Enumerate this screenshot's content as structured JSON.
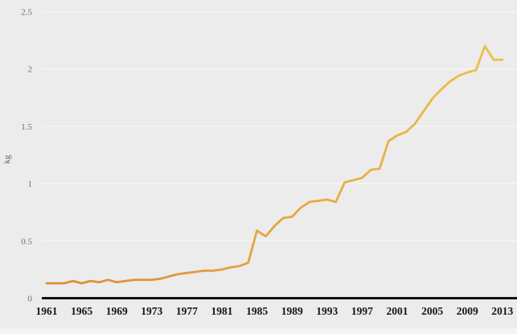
{
  "chart_data": {
    "type": "line",
    "title": "",
    "xlabel": "",
    "ylabel": "kg",
    "xlim": [
      1961,
      2013
    ],
    "ylim": [
      0,
      2.5
    ],
    "grid": true,
    "legend": "none",
    "x_tick_labels": [
      "1961",
      "1965",
      "1969",
      "1973",
      "1977",
      "1981",
      "1985",
      "1989",
      "1993",
      "1997",
      "2001",
      "2005",
      "2009",
      "2013"
    ],
    "x_ticks": [
      1961,
      1965,
      1969,
      1973,
      1977,
      1981,
      1985,
      1989,
      1993,
      1997,
      2001,
      2005,
      2009,
      2013
    ],
    "y_tick_labels": [
      "0",
      "0.5",
      "1",
      "1.5",
      "2",
      "2.5"
    ],
    "y_ticks": [
      0,
      0.5,
      1,
      1.5,
      2,
      2.5
    ],
    "series": [
      {
        "name": "kg",
        "x": [
          1961,
          1962,
          1963,
          1964,
          1965,
          1966,
          1967,
          1968,
          1969,
          1970,
          1971,
          1972,
          1973,
          1974,
          1975,
          1976,
          1977,
          1978,
          1979,
          1980,
          1981,
          1982,
          1983,
          1984,
          1985,
          1986,
          1987,
          1988,
          1989,
          1990,
          1991,
          1992,
          1993,
          1994,
          1995,
          1996,
          1997,
          1998,
          1999,
          2000,
          2001,
          2002,
          2003,
          2004,
          2005,
          2006,
          2007,
          2008,
          2009,
          2010,
          2011,
          2012,
          2013
        ],
        "values": [
          0.13,
          0.13,
          0.13,
          0.15,
          0.13,
          0.15,
          0.14,
          0.16,
          0.14,
          0.15,
          0.16,
          0.16,
          0.16,
          0.17,
          0.19,
          0.21,
          0.22,
          0.23,
          0.24,
          0.24,
          0.25,
          0.27,
          0.28,
          0.31,
          0.59,
          0.54,
          0.63,
          0.7,
          0.71,
          0.79,
          0.84,
          0.85,
          0.86,
          0.84,
          1.01,
          1.03,
          1.05,
          1.12,
          1.13,
          1.37,
          1.42,
          1.45,
          1.52,
          1.63,
          1.74,
          1.82,
          1.89,
          1.94,
          1.97,
          1.99,
          2.2,
          2.08,
          2.08
        ]
      }
    ],
    "colors": {
      "line_gradient_start": "#df8b33",
      "line_gradient_end": "#eec04a",
      "background": "#ececec",
      "gridline": "#f6f6f6",
      "axis_line": "#111111",
      "x_label_color": "#151515",
      "y_label_color": "#6e6e6e"
    }
  }
}
